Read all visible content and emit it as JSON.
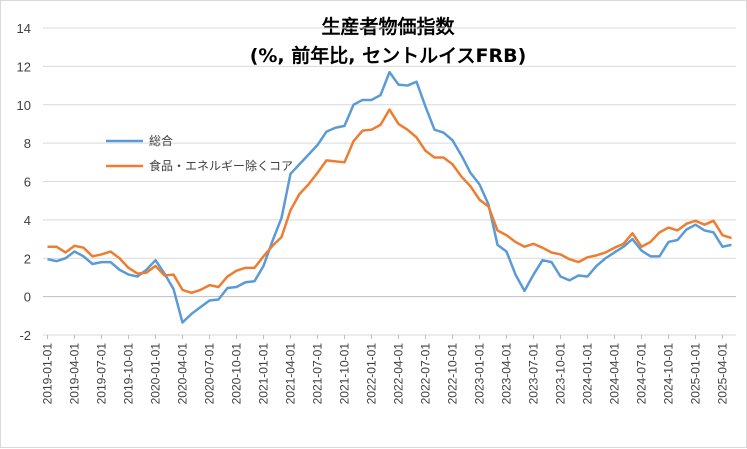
{
  "chart_data": {
    "type": "line",
    "title_line1": "生産者物価指数",
    "title_line2": "(%, 前年比, セントルイスFRB)",
    "ylim": [
      -2,
      14
    ],
    "yticks": [
      -2,
      0,
      2,
      4,
      6,
      8,
      10,
      12,
      14
    ],
    "grid": "horizontal",
    "legend_position": "left",
    "x_labels": [
      "2019-01-01",
      "2019-04-01",
      "2019-07-01",
      "2019-10-01",
      "2020-01-01",
      "2020-04-01",
      "2020-07-01",
      "2020-10-01",
      "2021-01-01",
      "2021-04-01",
      "2021-07-01",
      "2021-10-01",
      "2022-01-01",
      "2022-04-01",
      "2022-07-01",
      "2022-10-01",
      "2023-01-01",
      "2023-04-01",
      "2023-07-01",
      "2023-10-01",
      "2024-01-01",
      "2024-04-01",
      "2024-07-01",
      "2024-10-01",
      "2025-01-01",
      "2025-04-01"
    ],
    "x_start": "2019-01",
    "series": [
      {
        "name": "総合",
        "color": "#5b9bd5",
        "values": [
          1.95,
          1.85,
          2.0,
          2.35,
          2.1,
          1.7,
          1.8,
          1.8,
          1.4,
          1.15,
          1.05,
          1.4,
          1.9,
          1.2,
          0.4,
          -1.35,
          -0.9,
          -0.55,
          -0.2,
          -0.15,
          0.45,
          0.5,
          0.75,
          0.8,
          1.6,
          2.9,
          4.1,
          6.4,
          6.9,
          7.4,
          7.9,
          8.6,
          8.8,
          8.9,
          10.0,
          10.25,
          10.25,
          10.5,
          11.7,
          11.05,
          11.0,
          11.2,
          9.9,
          8.7,
          8.55,
          8.15,
          7.35,
          6.45,
          5.85,
          4.8,
          2.7,
          2.35,
          1.15,
          0.3,
          1.15,
          1.9,
          1.8,
          1.05,
          0.85,
          1.1,
          1.05,
          1.6,
          2.0,
          2.3,
          2.6,
          3.0,
          2.4,
          2.1,
          2.1,
          2.85,
          2.95,
          3.5,
          3.75,
          3.45,
          3.35,
          2.6,
          2.7
        ]
      },
      {
        "name": "食品・エネルギー除くコア",
        "color": "#ed7d31",
        "values": [
          2.6,
          2.6,
          2.3,
          2.65,
          2.55,
          2.1,
          2.2,
          2.35,
          2.0,
          1.5,
          1.2,
          1.25,
          1.6,
          1.1,
          1.15,
          0.35,
          0.2,
          0.35,
          0.6,
          0.5,
          1.05,
          1.35,
          1.5,
          1.5,
          2.1,
          2.65,
          3.1,
          4.5,
          5.35,
          5.85,
          6.45,
          7.1,
          7.05,
          7.0,
          8.1,
          8.65,
          8.7,
          8.95,
          9.75,
          9.0,
          8.7,
          8.3,
          7.6,
          7.25,
          7.25,
          6.9,
          6.25,
          5.75,
          5.05,
          4.7,
          3.45,
          3.2,
          2.85,
          2.6,
          2.75,
          2.55,
          2.3,
          2.2,
          1.95,
          1.8,
          2.05,
          2.15,
          2.3,
          2.55,
          2.75,
          3.3,
          2.6,
          2.85,
          3.35,
          3.6,
          3.45,
          3.8,
          3.95,
          3.75,
          3.95,
          3.2,
          3.05
        ]
      }
    ]
  }
}
